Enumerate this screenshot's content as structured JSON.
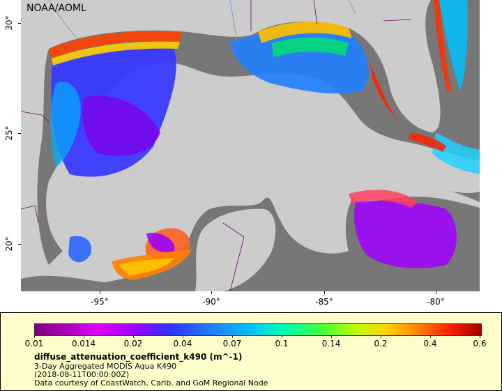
{
  "map": {
    "credit": "NOAA/AOML",
    "latitude_ticks": [
      "30°",
      "25°",
      "20°"
    ],
    "longitude_ticks": [
      "-95°",
      "-90°",
      "-85°",
      "-80°"
    ]
  },
  "legend": {
    "colorbar_ticks": [
      "0.01",
      "0.014",
      "0.02",
      "0.04",
      "0.07",
      "0.1",
      "0.14",
      "0.2",
      "0.4",
      "0.6"
    ],
    "variable_title": "diffuse_attenuation_coefficient_k490 (m^-1)",
    "dataset": "3-Day Aggregated MODIS Aqua K490",
    "time": "(2018-08-11T00:00:00Z)",
    "credit": "Data courtesy of CoastWatch, Carib. and GoM Regional Node"
  },
  "colors": {
    "land": "#cccccc",
    "no_data": "#777777",
    "legend_background": "#ffffcc"
  }
}
